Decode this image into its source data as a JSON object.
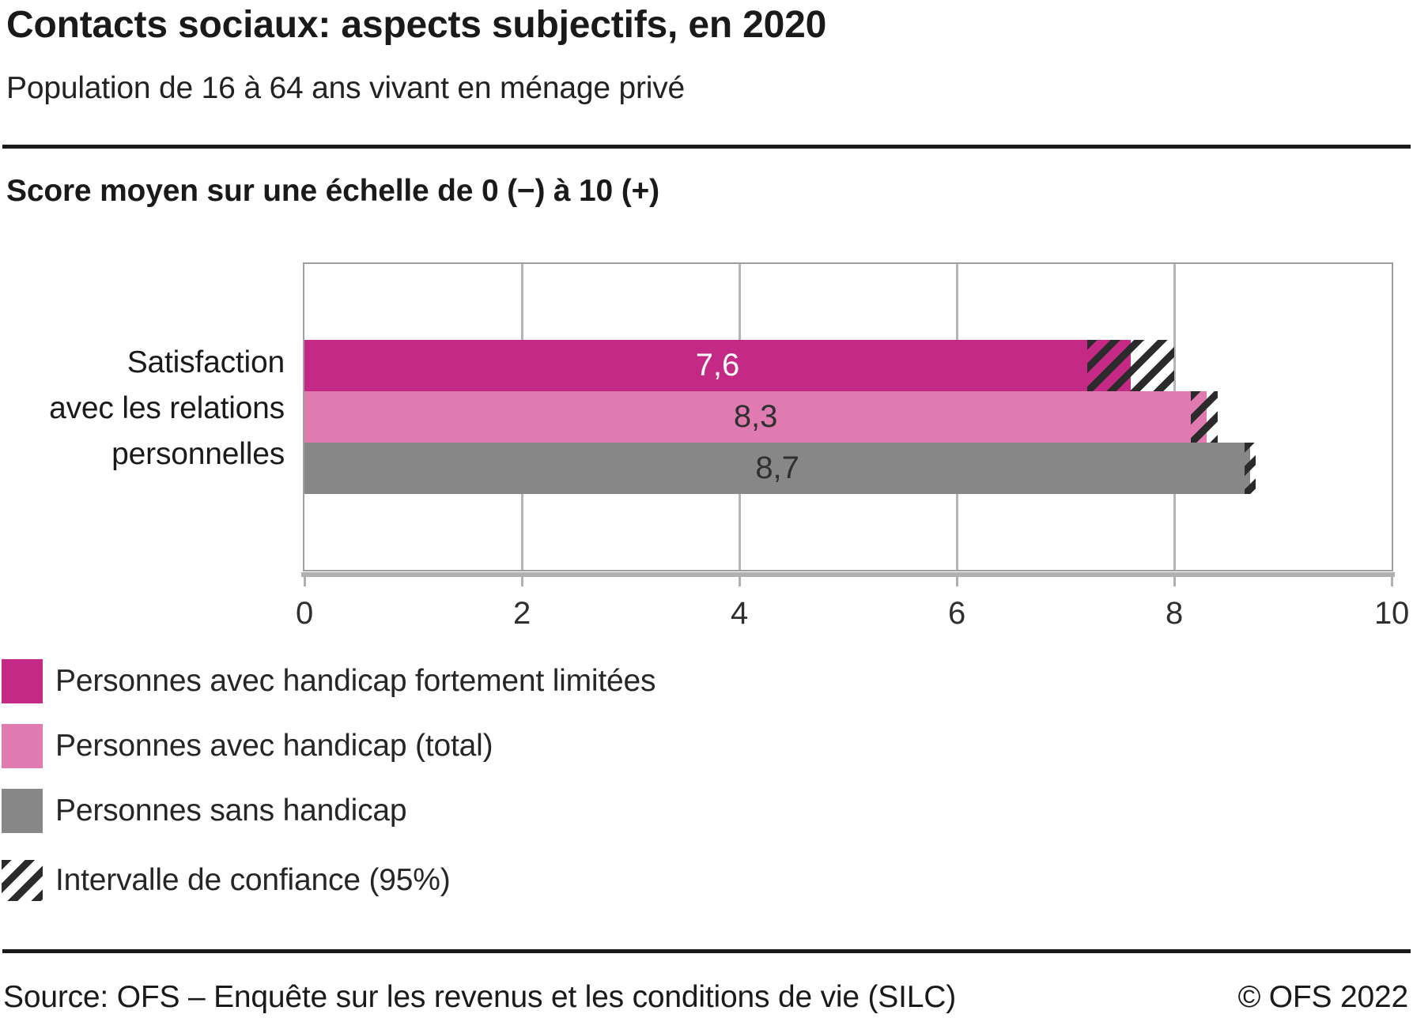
{
  "header": {
    "title": "Contacts sociaux: aspects subjectifs, en 2020",
    "subtitle": "Population de 16 à 64 ans vivant en ménage privé"
  },
  "chart_data": {
    "type": "bar",
    "orientation": "horizontal",
    "axis_label": "Score moyen sur une échelle de 0 (−) à 10 (+)",
    "category": "Satisfaction avec les relations personnelles",
    "category_lines": [
      "Satisfaction",
      "avec les relations",
      "personnelles"
    ],
    "xlim": [
      0,
      10
    ],
    "xticks": [
      0,
      2,
      4,
      6,
      8,
      10
    ],
    "grid": true,
    "legend_position": "bottom-left",
    "series": [
      {
        "name": "Personnes avec handicap fortement limitées",
        "value": 7.6,
        "value_label": "7,6",
        "color": "#c42986",
        "label_color": "#ffffff",
        "ci": [
          7.2,
          8.0
        ]
      },
      {
        "name": "Personnes avec handicap (total)",
        "value": 8.3,
        "value_label": "8,3",
        "color": "#df7bb0",
        "label_color": "#303030",
        "ci": [
          8.15,
          8.4
        ]
      },
      {
        "name": "Personnes sans handicap",
        "value": 8.7,
        "value_label": "8,7",
        "color": "#878787",
        "label_color": "#303030",
        "ci": [
          8.65,
          8.75
        ]
      }
    ],
    "ci_legend_label": "Intervalle de confiance (95%)",
    "colors": {
      "hatch": "#2b2b2b",
      "grid": "#b5b5b5",
      "frame": "#9e9e9e",
      "accent": "#c42986"
    }
  },
  "footer": {
    "source": "Source: OFS – Enquête sur les revenus et les conditions de vie (SILC)",
    "copyright": "© OFS 2022"
  }
}
